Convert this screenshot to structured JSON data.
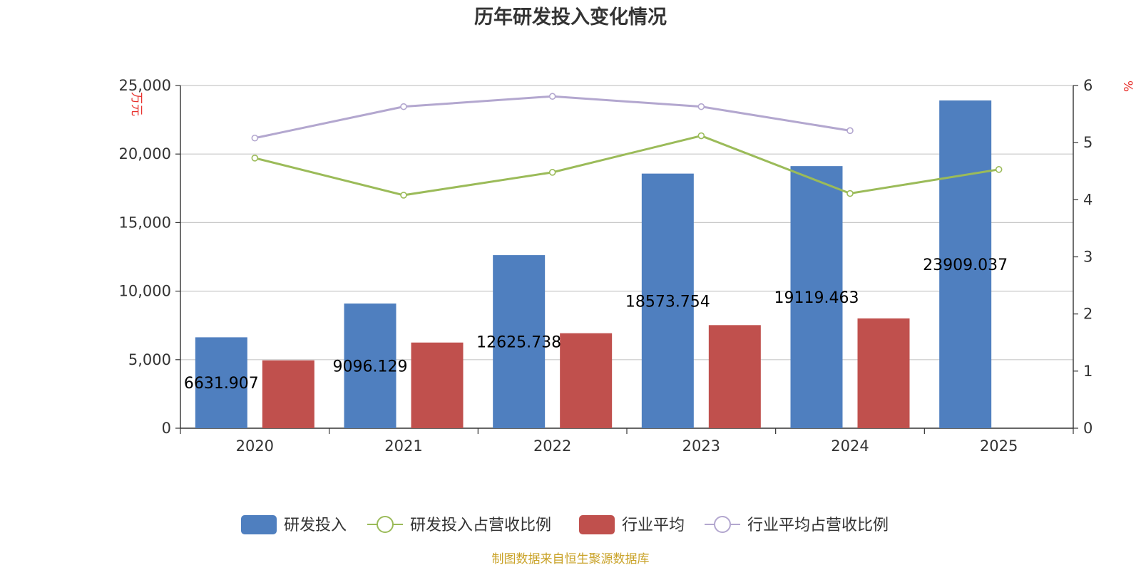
{
  "title": "历年研发投入变化情况",
  "source": "制图数据来自恒生聚源数据库",
  "chart_data": {
    "type": "bar",
    "title": "历年研发投入变化情况",
    "categories": [
      "2020",
      "2021",
      "2022",
      "2023",
      "2024",
      "2025"
    ],
    "y_left": {
      "label": "万元",
      "min": 0,
      "max": 25000,
      "ticks": [
        "0",
        "5,000",
        "10,000",
        "15,000",
        "20,000",
        "25,000"
      ]
    },
    "y_right": {
      "label": "%",
      "min": 0,
      "max": 6,
      "ticks": [
        "0",
        "1",
        "2",
        "3",
        "4",
        "5",
        "6"
      ]
    },
    "series": [
      {
        "name": "研发投入",
        "type": "bar",
        "axis": "left",
        "color": "#4f7fbf",
        "values": [
          6631.907,
          9096.129,
          12625.738,
          18573.754,
          19119.463,
          23909.037
        ],
        "labels": [
          "6631.907",
          "9096.129",
          "12625.738",
          "18573.754",
          "19119.463",
          "23909.037"
        ]
      },
      {
        "name": "研发投入占营收比例",
        "type": "line",
        "axis": "right",
        "color": "#9bbb59",
        "values": [
          4.73,
          4.08,
          4.48,
          5.12,
          4.11,
          4.53
        ]
      },
      {
        "name": "行业平均",
        "type": "bar",
        "axis": "left",
        "color": "#c0504d",
        "values": [
          4950,
          6250,
          6930,
          7520,
          8010,
          null
        ]
      },
      {
        "name": "行业平均占营收比例",
        "type": "line",
        "axis": "right",
        "color": "#b3a7cf",
        "values": [
          5.08,
          5.63,
          5.81,
          5.63,
          5.21,
          null
        ]
      }
    ],
    "grid": true,
    "legend": "bottom"
  }
}
